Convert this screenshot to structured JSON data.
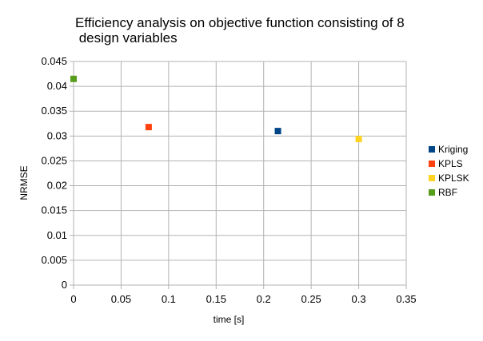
{
  "chart_data": {
    "type": "scatter",
    "title_lines": [
      "Efficiency analysis on objective function consisting of 8",
      " design variables"
    ],
    "xlabel": "time [s]",
    "ylabel": "NRMSE",
    "xlim": [
      0,
      0.35
    ],
    "ylim": [
      0,
      0.045
    ],
    "x_ticks": [
      "0",
      "0.05",
      "0.1",
      "0.15",
      "0.2",
      "0.25",
      "0.3",
      "0.35"
    ],
    "y_ticks": [
      "0",
      "0.005",
      "0.01",
      "0.015",
      "0.02",
      "0.025",
      "0.03",
      "0.035",
      "0.04",
      "0.045"
    ],
    "grid": true,
    "legend_position": "right",
    "series": [
      {
        "name": "Kriging",
        "color": "#004586",
        "points": [
          {
            "x": 0.215,
            "y": 0.031
          }
        ]
      },
      {
        "name": "KPLS",
        "color": "#ff420e",
        "points": [
          {
            "x": 0.079,
            "y": 0.0318
          }
        ]
      },
      {
        "name": "KPLSK",
        "color": "#ffd320",
        "points": [
          {
            "x": 0.3,
            "y": 0.0294
          }
        ]
      },
      {
        "name": "RBF",
        "color": "#579d1c",
        "points": [
          {
            "x": 0.0,
            "y": 0.0415
          }
        ]
      }
    ]
  }
}
